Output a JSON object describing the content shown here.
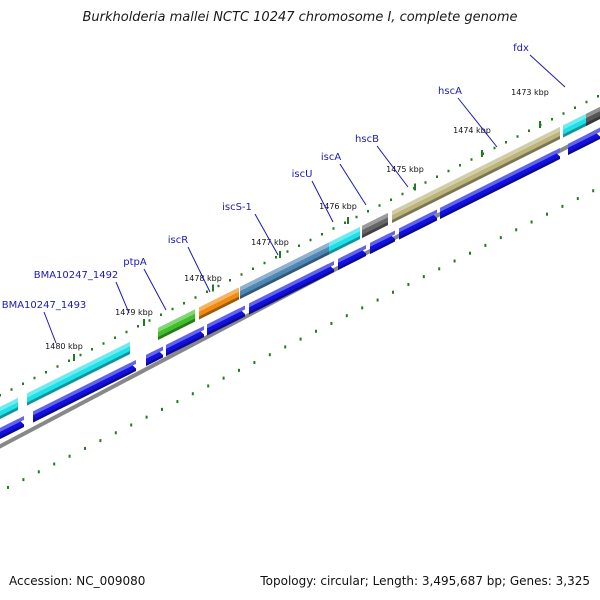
{
  "title": "Burkholderia mallei NCTC 10247 chromosome I, complete genome",
  "accession_text": "Accession: NC_009080",
  "summary_text": "Topology: circular; Length: 3,495,687 bp; Genes: 3,325",
  "colors": {
    "cds_blue": "#1010e0",
    "label_blue": "#1a1ab4",
    "cyan": "#1ee0e8",
    "olive": "#bcb47c",
    "steel_blue": "#4f87b4",
    "orange": "#f08a10",
    "green": "#3fbf2a",
    "gray": "#666666",
    "tick_green": "#1e7d1e",
    "backbone": "#888888"
  },
  "kbp_labels": [
    "1473 kbp",
    "1474 kbp",
    "1475 kbp",
    "1476 kbp",
    "1477 kbp",
    "1478 kbp",
    "1479 kbp",
    "1480 kbp"
  ],
  "genes": [
    {
      "name": "fdx",
      "color": "cyan"
    },
    {
      "name": "hscA",
      "color": "olive"
    },
    {
      "name": "hscB",
      "color": "olive"
    },
    {
      "name": "iscA",
      "color": "gray"
    },
    {
      "name": "iscU",
      "color": "cyan"
    },
    {
      "name": "iscS-1",
      "color": "steel_blue"
    },
    {
      "name": "iscR",
      "color": "orange"
    },
    {
      "name": "ptpA",
      "color": "green"
    },
    {
      "name": "BMA10247_1492",
      "color": "cyan"
    },
    {
      "name": "BMA10247_1493",
      "color": "cyan"
    }
  ]
}
